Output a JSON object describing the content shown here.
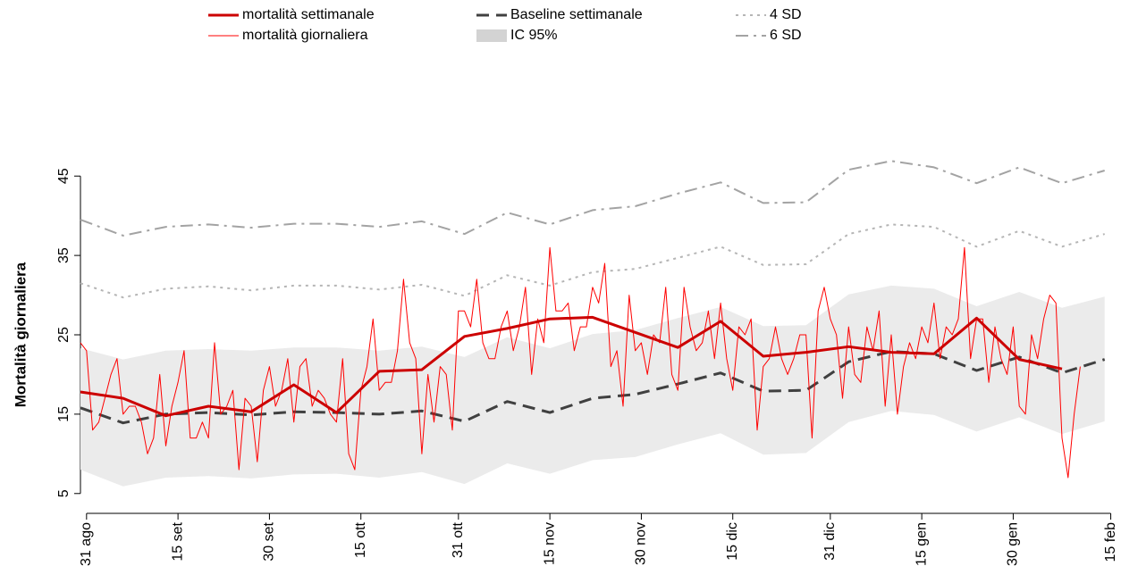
{
  "chart_data": {
    "type": "line",
    "y_label": "Mortalità giornaliera",
    "xlim": [
      -1,
      168.8
    ],
    "xticks": [
      {
        "value": 0,
        "label": "31 ago"
      },
      {
        "value": 15,
        "label": "15 set"
      },
      {
        "value": 30,
        "label": "30 set"
      },
      {
        "value": 45,
        "label": "15 ott"
      },
      {
        "value": 61,
        "label": "31 ott"
      },
      {
        "value": 76,
        "label": "15 nov"
      },
      {
        "value": 91,
        "label": "30 nov"
      },
      {
        "value": 106,
        "label": "15 dic"
      },
      {
        "value": 122,
        "label": "31 dic"
      },
      {
        "value": 137,
        "label": "15 gen"
      },
      {
        "value": 152,
        "label": "30 gen"
      },
      {
        "value": 168,
        "label": "15 feb"
      }
    ],
    "ylim": [
      2.5,
      47.5
    ],
    "yticks": [
      5,
      15,
      25,
      35,
      45
    ],
    "grid": false,
    "legend": "top",
    "series": [
      {
        "name": "mortalità settimanale",
        "color": "#cc0000",
        "linestyle": "solid",
        "linewidth": 3,
        "x": [
          -1,
          6,
          13,
          20,
          27,
          34,
          41,
          48,
          55,
          62,
          69,
          76,
          83,
          90,
          97,
          104,
          111,
          118,
          125,
          132,
          139,
          146,
          153,
          160
        ],
        "values": [
          17.8,
          17.0,
          14.8,
          16.0,
          15.3,
          18.7,
          15.2,
          20.4,
          20.6,
          24.8,
          25.8,
          27.0,
          27.2,
          25.3,
          23.4,
          26.7,
          22.3,
          22.8,
          23.5,
          22.8,
          22.6,
          27.1,
          21.9,
          20.7
        ]
      },
      {
        "name": "mortalità giornaliera",
        "color": "#ff0000",
        "linestyle": "solid",
        "linewidth": 1,
        "x": [
          -1,
          0,
          1,
          2,
          3,
          4,
          5,
          6,
          7,
          8,
          9,
          10,
          11,
          12,
          13,
          14,
          15,
          16,
          17,
          18,
          19,
          20,
          21,
          22,
          23,
          24,
          25,
          26,
          27,
          28,
          29,
          30,
          31,
          32,
          33,
          34,
          35,
          36,
          37,
          38,
          39,
          40,
          41,
          42,
          43,
          44,
          45,
          46,
          47,
          48,
          49,
          50,
          51,
          52,
          53,
          54,
          55,
          56,
          57,
          58,
          59,
          60,
          61,
          62,
          63,
          64,
          65,
          66,
          67,
          68,
          69,
          70,
          71,
          72,
          73,
          74,
          75,
          76,
          77,
          78,
          79,
          80,
          81,
          82,
          83,
          84,
          85,
          86,
          87,
          88,
          89,
          90,
          91,
          92,
          93,
          94,
          95,
          96,
          97,
          98,
          99,
          100,
          101,
          102,
          103,
          104,
          105,
          106,
          107,
          108,
          109,
          110,
          111,
          112,
          113,
          114,
          115,
          116,
          117,
          118,
          119,
          120,
          121,
          122,
          123,
          124,
          125,
          126,
          127,
          128,
          129,
          130,
          131,
          132,
          133,
          134,
          135,
          136,
          137,
          138,
          139,
          140,
          141,
          142,
          143,
          144,
          145,
          146,
          147,
          148,
          149,
          150,
          151,
          152,
          153,
          154,
          155,
          156,
          157,
          158,
          159,
          160,
          161,
          162,
          163
        ],
        "values": [
          24,
          23,
          13,
          14,
          17,
          20,
          22,
          15,
          16,
          16,
          14,
          10,
          12,
          20,
          11,
          16,
          19,
          23,
          12,
          12,
          14,
          12,
          24,
          15,
          16,
          18,
          8,
          17,
          16,
          9,
          18,
          21,
          16,
          18,
          22,
          14,
          21,
          22,
          16,
          18,
          17,
          15,
          14,
          22,
          10,
          8,
          18,
          21,
          27,
          18,
          19,
          19,
          23,
          32,
          24,
          22,
          10,
          20,
          14,
          21,
          20,
          13,
          28,
          28,
          26,
          32,
          24,
          22,
          22,
          26,
          28,
          23,
          26,
          31,
          20,
          27,
          24,
          36,
          28,
          28,
          29,
          23,
          26,
          26,
          31,
          29,
          34,
          21,
          23,
          16,
          30,
          23,
          24,
          20,
          25,
          24,
          31,
          20,
          18,
          31,
          26,
          23,
          24,
          28,
          22,
          29,
          22,
          18,
          26,
          25,
          27,
          13,
          21,
          22,
          26,
          22,
          20,
          22,
          25,
          25,
          12,
          28,
          31,
          27,
          25,
          17,
          26,
          20,
          19,
          26,
          23,
          28,
          16,
          25,
          15,
          21,
          24,
          22,
          26,
          24,
          29,
          22,
          26,
          25,
          27,
          36,
          22,
          27,
          27,
          19,
          26,
          22,
          20,
          26,
          16,
          15,
          25,
          22,
          27,
          30,
          29,
          12,
          7,
          15,
          21
        ]
      },
      {
        "name": "Baseline settimanale",
        "color": "#404040",
        "linestyle": "dashed",
        "linewidth": 3,
        "x": [
          -1,
          6,
          13,
          20,
          27,
          34,
          41,
          48,
          55,
          62,
          69,
          76,
          83,
          90,
          97,
          104,
          111,
          118,
          125,
          132,
          139,
          146,
          153,
          160,
          167
        ],
        "values": [
          15.8,
          13.9,
          15.0,
          15.2,
          14.9,
          15.3,
          15.2,
          15.0,
          15.4,
          14.1,
          16.6,
          15.2,
          17.0,
          17.5,
          18.8,
          20.2,
          17.9,
          18.0,
          21.6,
          22.9,
          22.6,
          20.5,
          22.2,
          20.2,
          21.9
        ]
      },
      {
        "name": "IC 95%",
        "color": "#ebebeb",
        "legend_color": "#d3d3d3",
        "x": [
          -1,
          6,
          13,
          20,
          27,
          34,
          41,
          48,
          55,
          62,
          69,
          76,
          83,
          90,
          97,
          104,
          111,
          118,
          125,
          132,
          139,
          146,
          153,
          160,
          167
        ],
        "lower": [
          8.0,
          5.9,
          7.0,
          7.2,
          6.9,
          7.4,
          7.5,
          7.0,
          7.7,
          6.2,
          8.8,
          7.5,
          9.2,
          9.6,
          11.2,
          12.6,
          9.9,
          10.1,
          14.0,
          15.4,
          14.9,
          12.8,
          14.6,
          12.5,
          14.1
        ],
        "upper": [
          23.3,
          21.9,
          23.0,
          23.2,
          23.0,
          23.4,
          23.4,
          23.0,
          23.5,
          22.2,
          24.7,
          23.3,
          25.1,
          25.6,
          27.1,
          28.5,
          26.1,
          26.2,
          30.1,
          31.2,
          30.8,
          28.6,
          30.4,
          28.4,
          29.8
        ]
      },
      {
        "name": "4 SD",
        "color": "#b5b5b5",
        "linestyle": "dotted",
        "linewidth": 2,
        "x": [
          -1,
          6,
          13,
          20,
          27,
          34,
          41,
          48,
          55,
          62,
          69,
          76,
          83,
          90,
          97,
          104,
          111,
          118,
          125,
          132,
          139,
          146,
          153,
          160,
          167
        ],
        "values": [
          31.5,
          29.7,
          30.8,
          31.1,
          30.6,
          31.2,
          31.2,
          30.7,
          31.3,
          29.9,
          32.5,
          31.2,
          32.9,
          33.3,
          34.7,
          36.1,
          33.8,
          33.9,
          37.7,
          38.9,
          38.6,
          36.1,
          38.1,
          36.1,
          37.7
        ]
      },
      {
        "name": "6 SD",
        "color": "#a3a3a3",
        "linestyle": "dashdot",
        "linewidth": 2,
        "x": [
          -1,
          6,
          13,
          20,
          27,
          34,
          41,
          48,
          55,
          62,
          69,
          76,
          83,
          90,
          97,
          104,
          111,
          118,
          125,
          132,
          139,
          146,
          153,
          160,
          167
        ],
        "values": [
          39.5,
          37.5,
          38.6,
          38.9,
          38.5,
          39.0,
          39.0,
          38.6,
          39.3,
          37.7,
          40.4,
          38.9,
          40.7,
          41.2,
          42.8,
          44.2,
          41.6,
          41.7,
          45.8,
          46.9,
          46.1,
          44.1,
          46.1,
          44.1,
          45.7
        ]
      }
    ]
  }
}
